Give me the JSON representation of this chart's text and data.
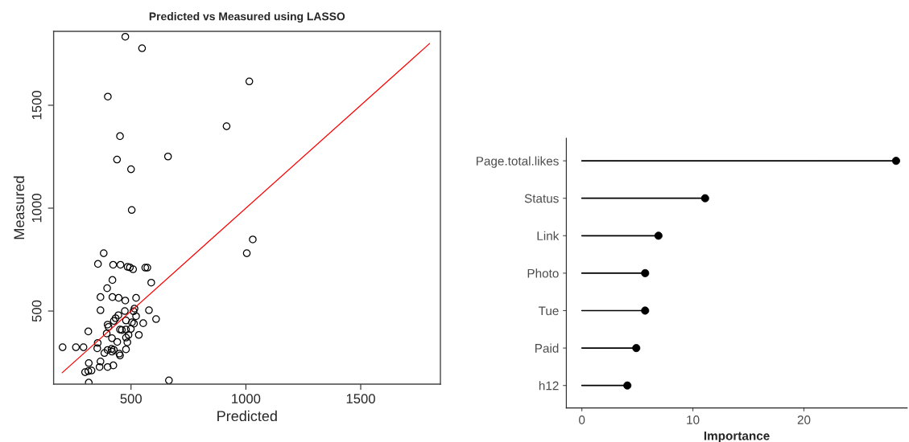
{
  "chart_data": [
    {
      "type": "scatter",
      "title": "Predicted vs Measured using LASSO",
      "xlabel": "Predicted",
      "ylabel": "Measured",
      "xlim": [
        163,
        1847
      ],
      "ylim": [
        145,
        1859
      ],
      "xticks": [
        500,
        1000,
        1500
      ],
      "yticks": [
        500,
        1000,
        1500
      ],
      "grid": false,
      "series": [
        {
          "type": "scatter",
          "color": "#000000",
          "marker": "circle",
          "x": [
            475,
            548,
            1015,
            399,
            916,
            452,
            439,
            661,
            500,
            503,
            1030,
            381,
            356,
            422,
            454,
            485,
            495,
            509,
            562,
            571,
            1004,
            419,
            588,
            396,
            367,
            419,
            446,
            475,
            522,
            367,
            473,
            515,
            511,
            578,
            445,
            433,
            522,
            609,
            398,
            402,
            425,
            478,
            504,
            513,
            553,
            452,
            460,
            478,
            499,
            314,
            394,
            489,
            534,
            417,
            478,
            355,
            440,
            484,
            353,
            202,
            260,
            293,
            398,
            415,
            425,
            384,
            417,
            478,
            449,
            452,
            316,
            367,
            363,
            398,
            423,
            300,
            314,
            328,
            316,
            665
          ],
          "values": [
            1833,
            1777,
            1616,
            1542,
            1398,
            1350,
            1236,
            1251,
            1189,
            991,
            848,
            781,
            729,
            725,
            725,
            715,
            712,
            703,
            711,
            711,
            781,
            651,
            638,
            611,
            568,
            568,
            564,
            551,
            564,
            504,
            500,
            512,
            499,
            504,
            480,
            465,
            475,
            461,
            434,
            423,
            452,
            454,
            445,
            439,
            441,
            410,
            408,
            410,
            413,
            401,
            391,
            384,
            384,
            368,
            371,
            345,
            350,
            348,
            319,
            324,
            324,
            324,
            311,
            316,
            312,
            296,
            303,
            314,
            293,
            284,
            247,
            255,
            228,
            228,
            236,
            203,
            208,
            211,
            152,
            163
          ]
        },
        {
          "type": "line",
          "color": "#ff0000",
          "marker": "none",
          "x": [
            200,
            1800
          ],
          "values": [
            200,
            1800
          ]
        }
      ]
    },
    {
      "type": "lollipop",
      "orientation": "horizontal",
      "xlabel": "Importance",
      "color": "#000000",
      "grid": false,
      "categories": [
        "Page.total.likes",
        "Status",
        "Link",
        "Photo",
        "Tue",
        "Paid",
        "h12"
      ],
      "values": [
        28.3,
        11.1,
        6.9,
        5.7,
        5.7,
        4.9,
        4.1
      ],
      "xlim": [
        -1.4,
        29.3
      ],
      "xticks": [
        0,
        10,
        20
      ]
    }
  ]
}
